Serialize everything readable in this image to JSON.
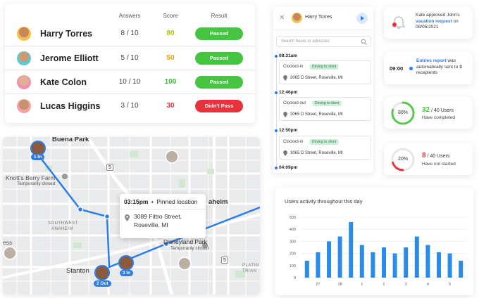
{
  "results": {
    "headers": {
      "answers": "Answers",
      "score": "Score",
      "result": "Result"
    },
    "rows": [
      {
        "name": "Harry Torres",
        "answers": "8 / 10",
        "score": "80",
        "score_color": "#b8c000",
        "result": "Passed",
        "result_color": "#45c441"
      },
      {
        "name": "Jerome Elliott",
        "answers": "5 / 10",
        "score": "50",
        "score_color": "#e8a300",
        "result": "Passed",
        "result_color": "#45c441"
      },
      {
        "name": "Kate Colon",
        "answers": "10 / 10",
        "score": "100",
        "score_color": "#3dbb38",
        "result": "Passed",
        "result_color": "#45c441"
      },
      {
        "name": "Lucas Higgins",
        "answers": "3 / 10",
        "score": "30",
        "score_color": "#e8323c",
        "result": "Didn't Pass",
        "result_color": "#e8323c"
      }
    ]
  },
  "map": {
    "labels": {
      "buena_park": "Buena Park",
      "knotts": "Knott's Berry Farm",
      "temp1": "Temporarily closed",
      "southwest": "SOUTHWEST",
      "anaheim_small": "ANAHEIM",
      "aheim": "aheim",
      "disneyland": "Disneyland Park",
      "temp2": "Temporarily closed",
      "stanton": "Stanton",
      "ess": "ess",
      "platinum": "PLATIN",
      "triangle": "TRIAN"
    },
    "pins": {
      "p1": "1 In",
      "p2": "2 Out",
      "p3": "3 In"
    },
    "route_sign": "5",
    "route_sign2": "5",
    "popup": {
      "time": "03:15pm",
      "sep": "•",
      "label": "Pinned location",
      "address1": "3089 Fittro Street,",
      "address2": "Roseville, MI"
    }
  },
  "timeline": {
    "user": "Harry Torres",
    "search_placeholder": "Search hours or adresses",
    "entries": [
      {
        "time": "08:31am",
        "status": "Clocked-in",
        "tag": "Driving to client",
        "address": "3065  D Street, Roseville, MI"
      },
      {
        "time": "12:46pm",
        "status": "Clocked-out",
        "tag": "Driving to client",
        "address": "3065  D Street, Roseville, MI"
      },
      {
        "time": "12:50pm",
        "status": "Clocked-in",
        "tag": "Driving to client",
        "address": "3065  D Street, Roseville, MI"
      }
    ],
    "last_time": "04:09pm"
  },
  "notifications": {
    "approval": {
      "pre": "Kate approved John's",
      "link": "vacation request",
      "post": " on",
      "date": "08/05/2021"
    },
    "report": {
      "time": "09:00",
      "link": "Entries report",
      "text1": " was",
      "text2": "automatically",
      "text3": "sent to ",
      "count": "3",
      "text4": " recepients"
    },
    "completed": {
      "percent": "80%",
      "value": "32",
      "total": " / 40 Users",
      "caption": "Have completed",
      "fraction": 0.8,
      "color": "#57c84d"
    },
    "not_started": {
      "percent": "20%",
      "value": "8",
      "total": " / 40 Users",
      "caption": "Have not started",
      "fraction": 0.2,
      "color": "#e8323c"
    }
  },
  "chart_data": {
    "type": "bar",
    "title": "Users activity throughout this day",
    "ylim": [
      0,
      500
    ],
    "yticks": [
      0,
      100,
      200,
      300,
      400,
      500
    ],
    "categories": [
      "",
      "27",
      "",
      "28",
      "",
      "1",
      "",
      "2",
      "",
      "3",
      "",
      "4",
      "",
      "5",
      ""
    ],
    "values": [
      140,
      210,
      300,
      340,
      460,
      270,
      210,
      250,
      200,
      250,
      340,
      270,
      210,
      200,
      140
    ],
    "color": "#2b8be8"
  }
}
